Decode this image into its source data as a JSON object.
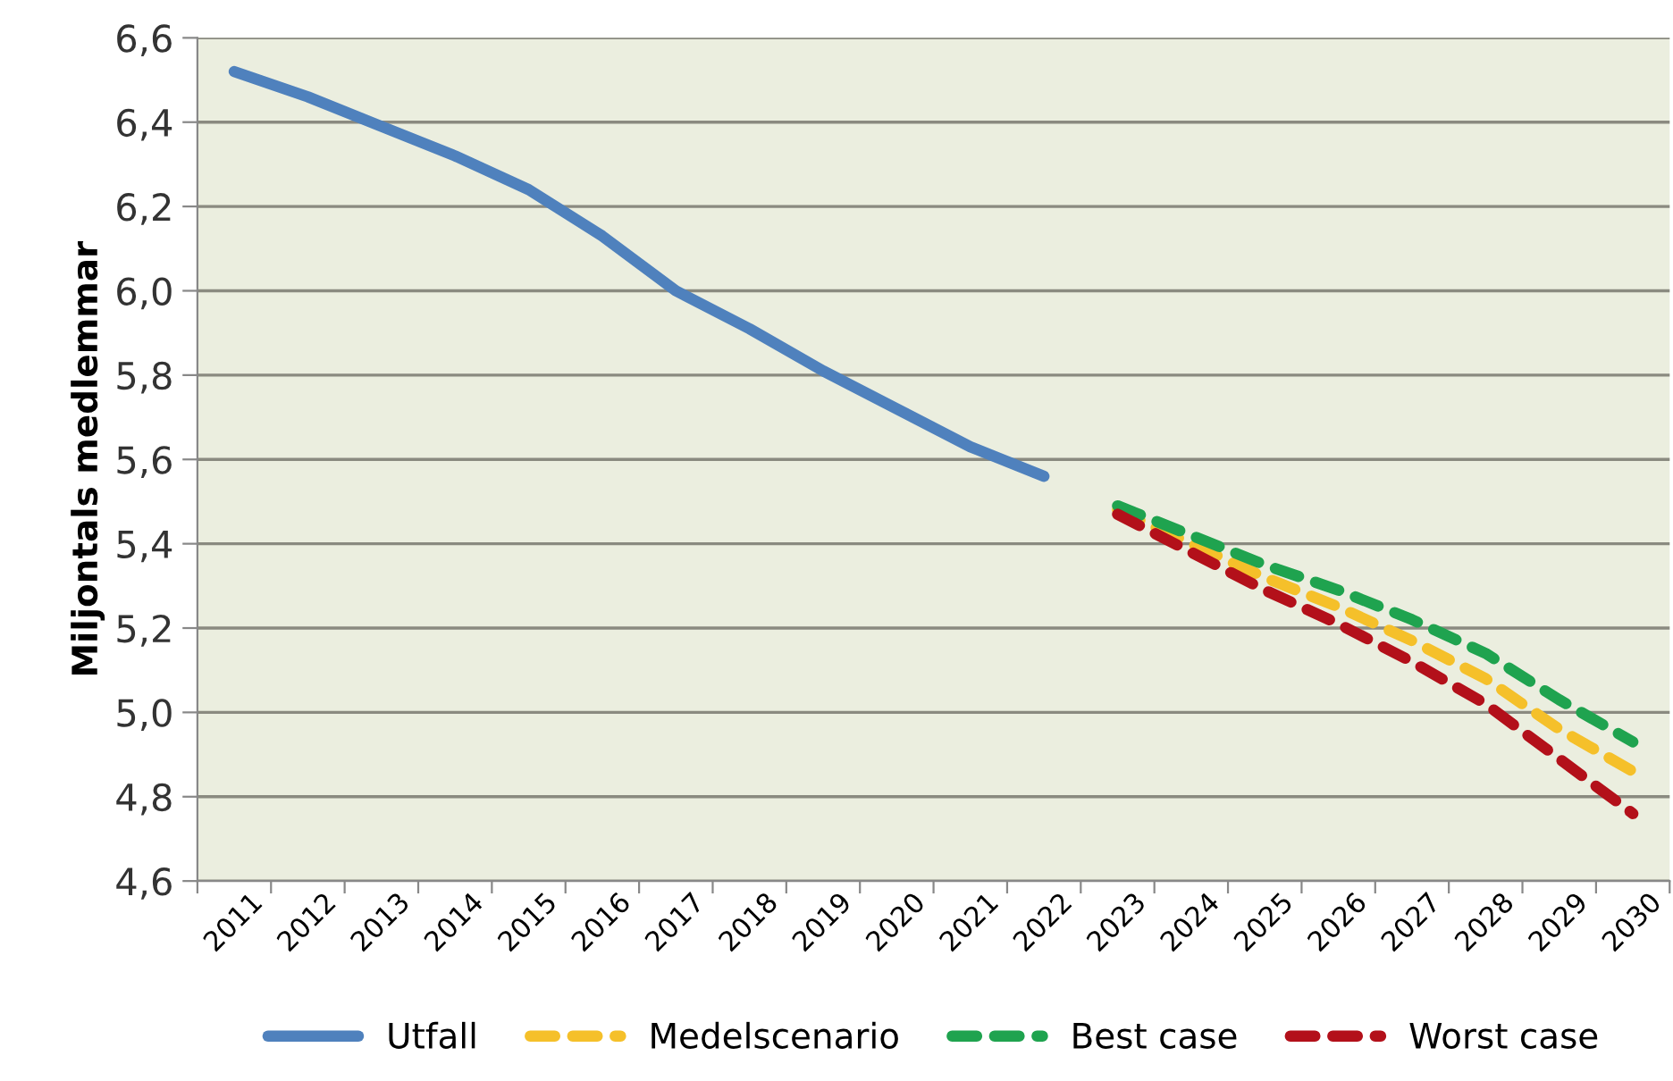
{
  "chart_data": {
    "type": "line",
    "ylabel": "Miljontals medlemmar",
    "categories": [
      "2011",
      "2012",
      "2013",
      "2014",
      "2015",
      "2016",
      "2017",
      "2018",
      "2019",
      "2020",
      "2021",
      "2022",
      "2023",
      "2024",
      "2025",
      "2026",
      "2027",
      "2028",
      "2029",
      "2030"
    ],
    "series": [
      {
        "name": "Utfall",
        "color": "#4f81bd",
        "line_style": "solid",
        "values": [
          6.52,
          6.46,
          6.39,
          6.32,
          6.24,
          6.13,
          6.0,
          5.91,
          5.81,
          5.72,
          5.63,
          5.56,
          null,
          null,
          null,
          null,
          null,
          null,
          null,
          null
        ]
      },
      {
        "name": "Medelscenario",
        "color": "#f5c02a",
        "line_style": "dashed",
        "values": [
          null,
          null,
          null,
          null,
          null,
          null,
          null,
          null,
          null,
          null,
          null,
          null,
          5.48,
          5.4,
          5.32,
          5.25,
          5.17,
          5.08,
          4.96,
          4.86
        ]
      },
      {
        "name": "Best case",
        "color": "#1fa34f",
        "line_style": "dashed",
        "values": [
          null,
          null,
          null,
          null,
          null,
          null,
          null,
          null,
          null,
          null,
          null,
          null,
          5.49,
          5.42,
          5.35,
          5.29,
          5.22,
          5.14,
          5.03,
          4.93
        ]
      },
      {
        "name": "Worst case",
        "color": "#b3101a",
        "line_style": "dashed",
        "values": [
          null,
          null,
          null,
          null,
          null,
          null,
          null,
          null,
          null,
          null,
          null,
          null,
          5.47,
          5.38,
          5.29,
          5.21,
          5.12,
          5.02,
          4.89,
          4.76
        ]
      }
    ],
    "ylim": [
      4.6,
      6.6
    ],
    "yticks": [
      {
        "value": 4.6,
        "label": "4,6"
      },
      {
        "value": 4.8,
        "label": "4,8"
      },
      {
        "value": 5.0,
        "label": "5,0"
      },
      {
        "value": 5.2,
        "label": "5,2"
      },
      {
        "value": 5.4,
        "label": "5,4"
      },
      {
        "value": 5.6,
        "label": "5,6"
      },
      {
        "value": 5.8,
        "label": "5,8"
      },
      {
        "value": 6.0,
        "label": "6,0"
      },
      {
        "value": 6.2,
        "label": "6,2"
      },
      {
        "value": 6.4,
        "label": "6,4"
      },
      {
        "value": 6.6,
        "label": "6,6"
      }
    ],
    "grid": "y",
    "legend": "bottom",
    "marker": "none"
  }
}
